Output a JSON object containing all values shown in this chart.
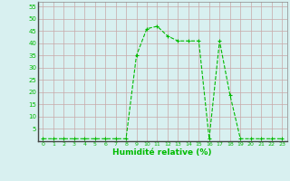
{
  "x": [
    0,
    1,
    2,
    3,
    4,
    5,
    6,
    7,
    8,
    9,
    10,
    11,
    12,
    13,
    14,
    15,
    16,
    17,
    18,
    19,
    20,
    21,
    22,
    23
  ],
  "y": [
    1,
    1,
    1,
    1,
    1,
    1,
    1,
    1,
    1,
    35,
    46,
    47,
    43,
    41,
    41,
    41,
    1,
    41,
    19,
    1,
    1,
    1,
    1,
    1
  ],
  "xlabel": "Humidité relative (%)",
  "ylim": [
    0,
    57
  ],
  "xlim": [
    -0.5,
    23.5
  ],
  "yticks": [
    5,
    10,
    15,
    20,
    25,
    30,
    35,
    40,
    45,
    50,
    55
  ],
  "xticks": [
    0,
    1,
    2,
    3,
    4,
    5,
    6,
    7,
    8,
    9,
    10,
    11,
    12,
    13,
    14,
    15,
    16,
    17,
    18,
    19,
    20,
    21,
    22,
    23
  ],
  "line_color": "#00bb00",
  "bg_color": "#d8f0f0",
  "grid_color": "#c8a8a8",
  "marker": "+"
}
